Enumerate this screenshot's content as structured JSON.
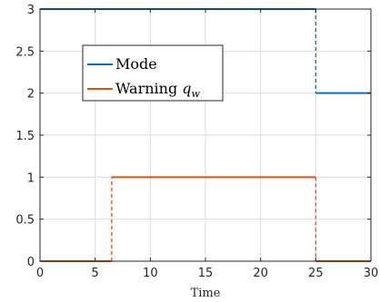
{
  "chart_data": {
    "type": "line",
    "title": "",
    "xlabel": "Time",
    "ylabel": "",
    "xlim": [
      0,
      30
    ],
    "ylim": [
      0,
      3
    ],
    "xticks": [
      0,
      5,
      10,
      15,
      20,
      25,
      30
    ],
    "yticks": [
      0,
      0.5,
      1,
      1.5,
      2,
      2.5,
      3
    ],
    "ytick_labels": [
      "0",
      "0.5",
      "1",
      "1.5",
      "2",
      "2.5",
      "3"
    ],
    "grid": true,
    "legend_position": "upper-left",
    "series": [
      {
        "name": "Mode",
        "color": "#0072BD",
        "style": "step, dashed vertical transitions",
        "x": [
          0,
          25,
          25,
          30
        ],
        "y": [
          3,
          3,
          2,
          2
        ]
      },
      {
        "name": "Warning q_w",
        "legend_main": "Warning ",
        "legend_symbol": "q",
        "legend_subscript": "w",
        "color": "#D95319",
        "style": "step, dashed vertical transitions",
        "x": [
          0,
          6.5,
          6.5,
          25,
          25,
          30
        ],
        "y": [
          0,
          0,
          1,
          1,
          0,
          0
        ]
      }
    ]
  }
}
